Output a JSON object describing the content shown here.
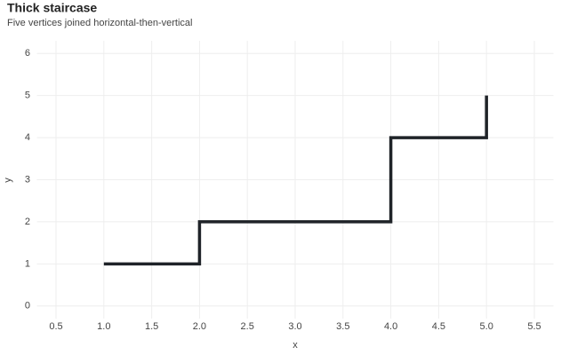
{
  "chart_data": {
    "type": "step",
    "title": "Thick staircase",
    "subtitle": "Five vertices joined horizontal-then-vertical",
    "x_label": "x",
    "y_label": "y",
    "x": [
      1,
      2,
      3,
      4,
      5
    ],
    "values": [
      1,
      2,
      2,
      4,
      5
    ],
    "color": "#1f2328",
    "xlim": [
      0.3,
      5.7
    ],
    "xticks": [
      0.5,
      {
        "value": 1,
        "label": "1.0"
      },
      1.5,
      {
        "value": 2,
        "label": "2.0"
      },
      2.5,
      {
        "value": 3,
        "label": "3.0"
      },
      3.5,
      {
        "value": 4,
        "label": "4.0"
      },
      4.5,
      {
        "value": 5,
        "label": "5.0"
      },
      5.5
    ],
    "ylim": [
      -0.3,
      6.3
    ],
    "yticks": [
      0,
      1,
      2,
      3,
      4,
      5,
      6
    ],
    "grid": true
  }
}
